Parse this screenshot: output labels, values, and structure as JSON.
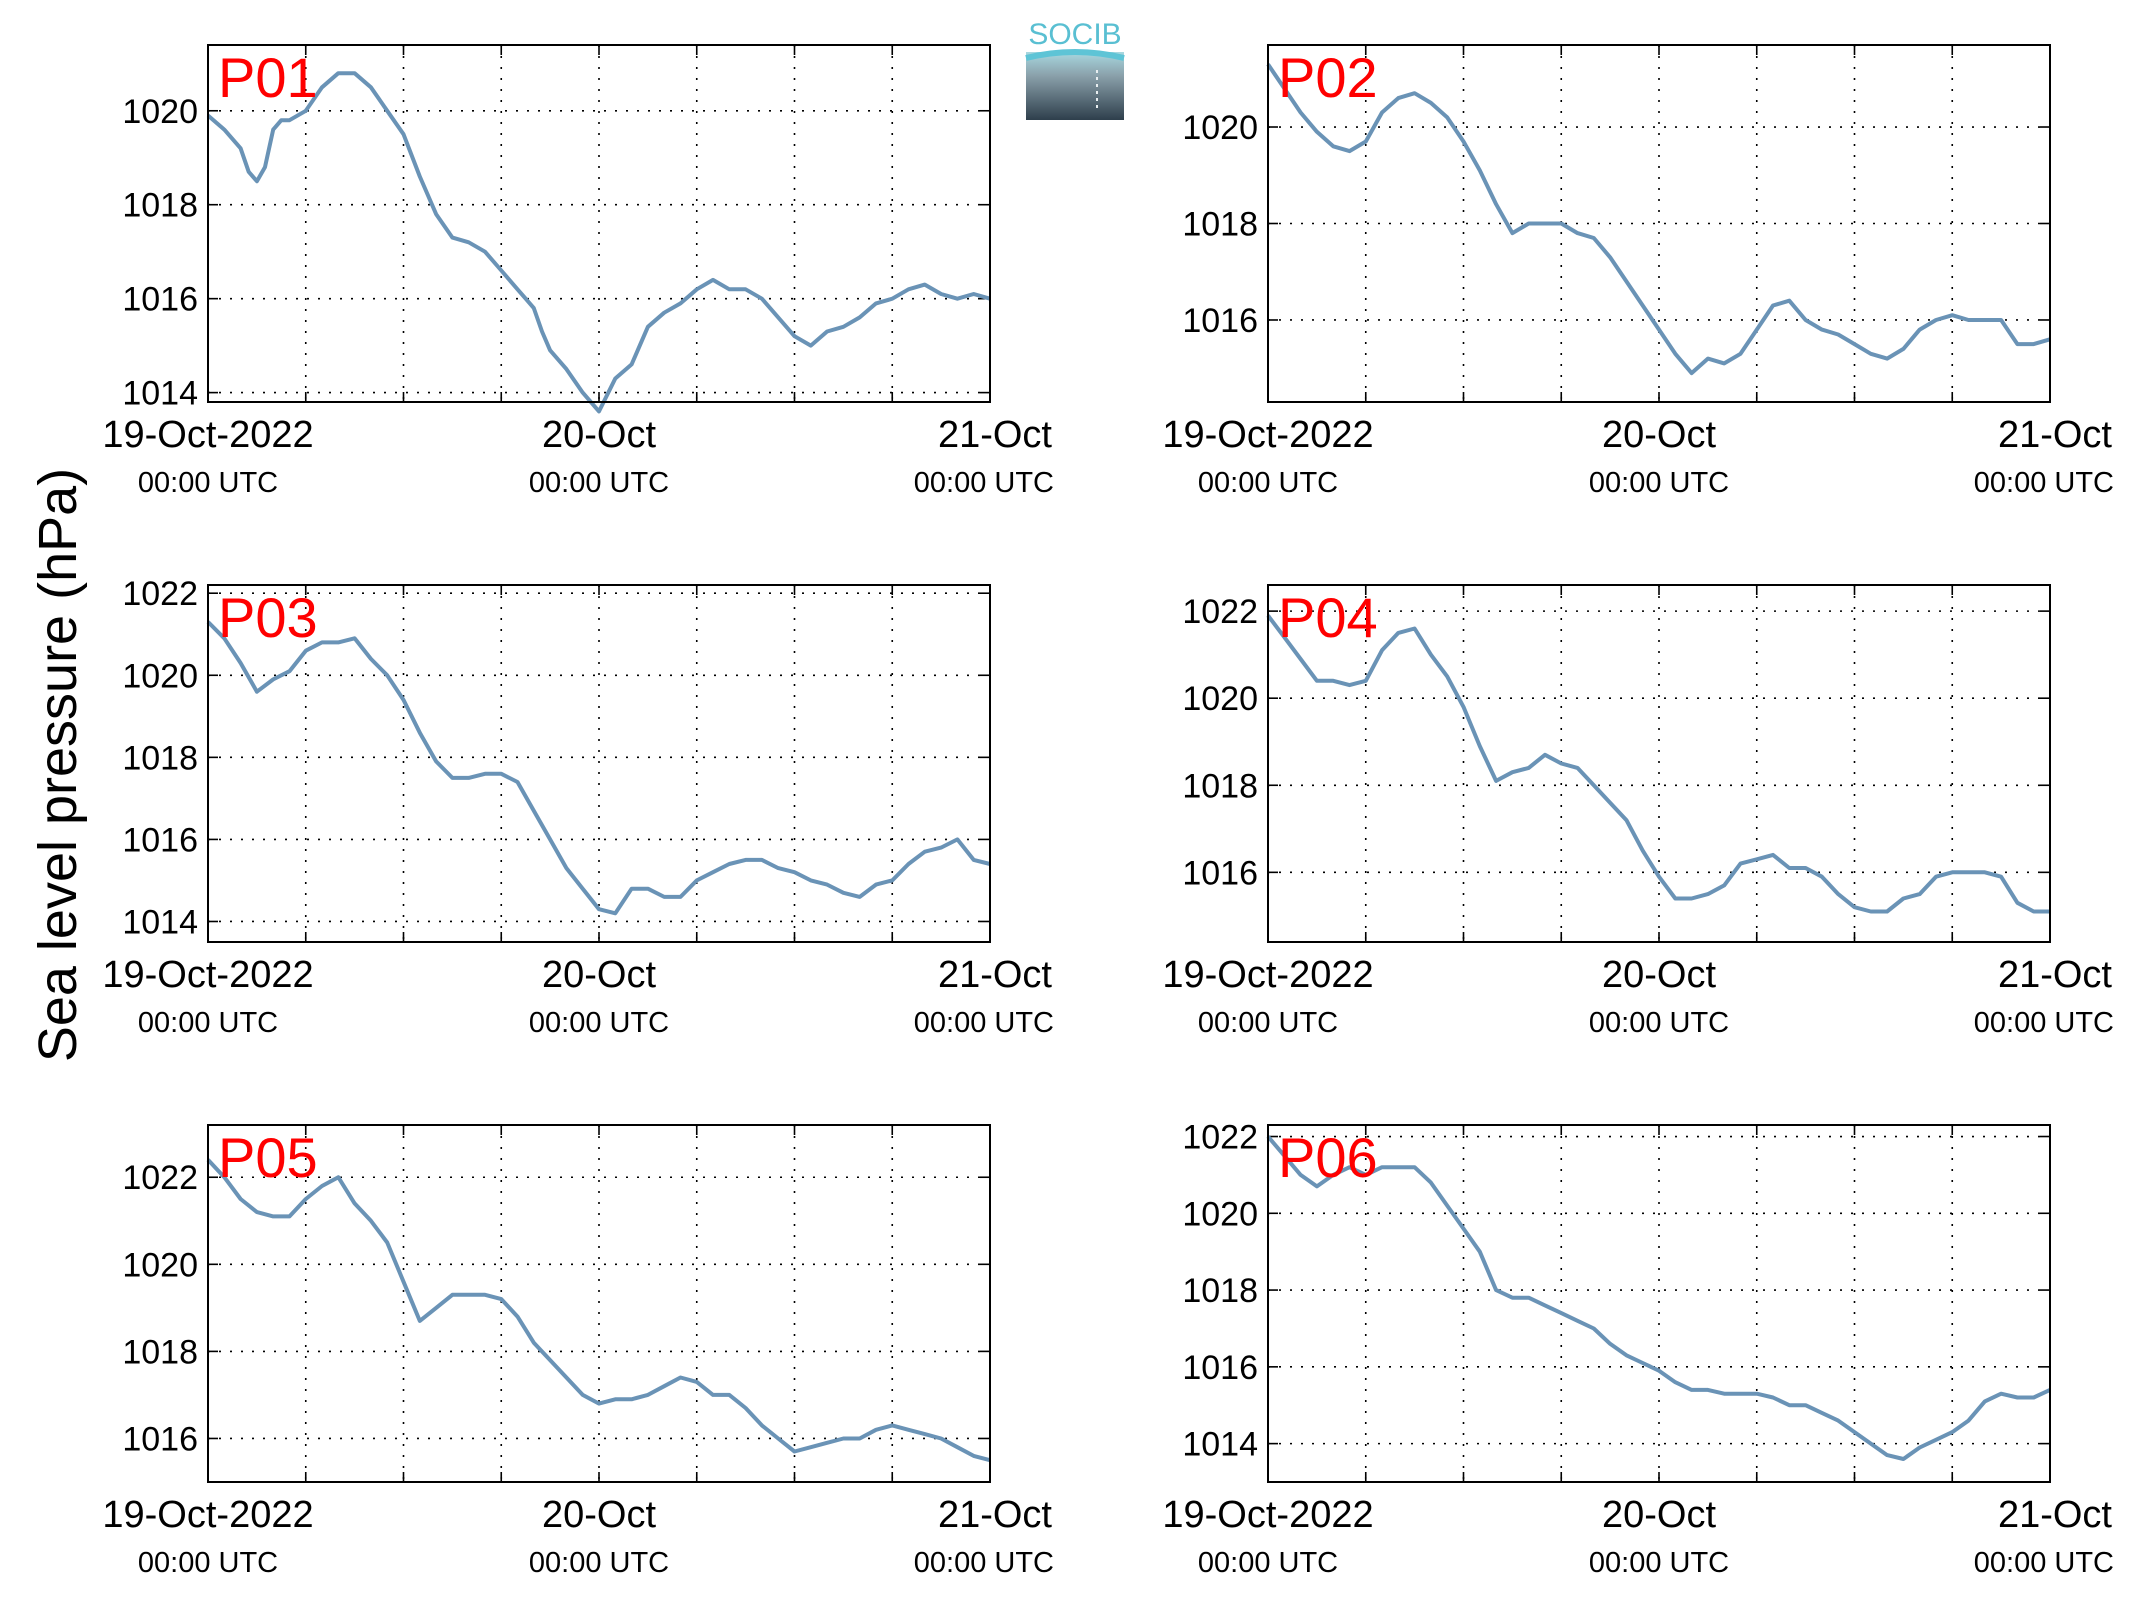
{
  "figure": {
    "ylabel": "Sea level pressure (hPa)",
    "logo_text": "SOCIB",
    "colors": {
      "line": "#6a93b6",
      "panel_label": "#ff0000",
      "grid": "#000000",
      "axes": "#000000"
    }
  },
  "chart_data": [
    {
      "type": "line",
      "panel_label": "P01",
      "x_ticks": [
        {
          "top": "19-Oct-2022",
          "bottom": "00:00 UTC"
        },
        {
          "top": "20-Oct",
          "bottom": "00:00 UTC"
        },
        {
          "top": "21-Oct",
          "bottom": "00:00 UTC"
        }
      ],
      "xlim": [
        0,
        48
      ],
      "ylim": [
        1013.8,
        1021.4
      ],
      "yticks": [
        1014,
        1016,
        1018,
        1020
      ],
      "series": [
        {
          "x": [
            0,
            1,
            2,
            2.5,
            3,
            3.5,
            4,
            4.5,
            5,
            6,
            7,
            8,
            9,
            10,
            11,
            12,
            13,
            14,
            15,
            16,
            17,
            18,
            19,
            19.5,
            20,
            20.5,
            21,
            22,
            23,
            24,
            25,
            26,
            27,
            28,
            29,
            30,
            31,
            32,
            33,
            34,
            35,
            36,
            37,
            38,
            39,
            40,
            41,
            42,
            43,
            44,
            45,
            46,
            47,
            48
          ],
          "y": [
            1019.9,
            1019.6,
            1019.2,
            1018.7,
            1018.5,
            1018.8,
            1019.6,
            1019.8,
            1019.8,
            1020.0,
            1020.5,
            1020.8,
            1020.8,
            1020.5,
            1020.0,
            1019.5,
            1018.6,
            1017.8,
            1017.3,
            1017.2,
            1017.0,
            1016.6,
            1016.2,
            1016.0,
            1015.8,
            1015.3,
            1014.9,
            1014.5,
            1014.0,
            1013.6,
            1014.3,
            1014.6,
            1015.4,
            1015.7,
            1015.9,
            1016.2,
            1016.4,
            1016.2,
            1016.2,
            1016.0,
            1015.6,
            1015.2,
            1015.0,
            1015.3,
            1015.4,
            1015.6,
            1015.9,
            1016.0,
            1016.2,
            1016.3,
            1016.1,
            1016.0,
            1016.1,
            1016.0
          ]
        }
      ]
    },
    {
      "type": "line",
      "panel_label": "P02",
      "x_ticks": [
        {
          "top": "19-Oct-2022",
          "bottom": "00:00 UTC"
        },
        {
          "top": "20-Oct",
          "bottom": "00:00 UTC"
        },
        {
          "top": "21-Oct",
          "bottom": "00:00 UTC"
        }
      ],
      "xlim": [
        0,
        48
      ],
      "ylim": [
        1014.3,
        1021.7
      ],
      "yticks": [
        1016,
        1018,
        1020
      ],
      "series": [
        {
          "x": [
            0,
            1,
            2,
            3,
            4,
            5,
            6,
            7,
            8,
            9,
            10,
            11,
            12,
            13,
            14,
            15,
            16,
            17,
            18,
            19,
            20,
            21,
            22,
            23,
            24,
            25,
            26,
            27,
            28,
            29,
            30,
            31,
            32,
            33,
            34,
            35,
            36,
            37,
            38,
            39,
            40,
            41,
            42,
            43,
            44,
            45,
            46,
            47,
            48
          ],
          "y": [
            1021.3,
            1020.8,
            1020.3,
            1019.9,
            1019.6,
            1019.5,
            1019.7,
            1020.3,
            1020.6,
            1020.7,
            1020.5,
            1020.2,
            1019.7,
            1019.1,
            1018.4,
            1017.8,
            1018.0,
            1018.0,
            1018.0,
            1017.8,
            1017.7,
            1017.3,
            1016.8,
            1016.3,
            1015.8,
            1015.3,
            1014.9,
            1015.2,
            1015.1,
            1015.3,
            1015.8,
            1016.3,
            1016.4,
            1016.0,
            1015.8,
            1015.7,
            1015.5,
            1015.3,
            1015.2,
            1015.4,
            1015.8,
            1016.0,
            1016.1,
            1016.0,
            1016.0,
            1016.0,
            1015.5,
            1015.5,
            1015.6
          ]
        }
      ]
    },
    {
      "type": "line",
      "panel_label": "P03",
      "x_ticks": [
        {
          "top": "19-Oct-2022",
          "bottom": "00:00 UTC"
        },
        {
          "top": "20-Oct",
          "bottom": "00:00 UTC"
        },
        {
          "top": "21-Oct",
          "bottom": "00:00 UTC"
        }
      ],
      "xlim": [
        0,
        48
      ],
      "ylim": [
        1013.5,
        1022.2
      ],
      "yticks": [
        1014,
        1016,
        1018,
        1020,
        1022
      ],
      "series": [
        {
          "x": [
            0,
            1,
            2,
            3,
            4,
            5,
            6,
            7,
            8,
            9,
            10,
            11,
            12,
            13,
            14,
            15,
            16,
            17,
            18,
            19,
            20,
            21,
            22,
            23,
            24,
            25,
            26,
            27,
            28,
            29,
            30,
            31,
            32,
            33,
            34,
            35,
            36,
            37,
            38,
            39,
            40,
            41,
            42,
            43,
            44,
            45,
            46,
            47,
            48
          ],
          "y": [
            1021.3,
            1020.9,
            1020.3,
            1019.6,
            1019.9,
            1020.1,
            1020.6,
            1020.8,
            1020.8,
            1020.9,
            1020.4,
            1020.0,
            1019.4,
            1018.6,
            1017.9,
            1017.5,
            1017.5,
            1017.6,
            1017.6,
            1017.4,
            1016.7,
            1016.0,
            1015.3,
            1014.8,
            1014.3,
            1014.2,
            1014.8,
            1014.8,
            1014.6,
            1014.6,
            1015.0,
            1015.2,
            1015.4,
            1015.5,
            1015.5,
            1015.3,
            1015.2,
            1015.0,
            1014.9,
            1014.7,
            1014.6,
            1014.9,
            1015.0,
            1015.4,
            1015.7,
            1015.8,
            1016.0,
            1015.5,
            1015.4
          ]
        }
      ]
    },
    {
      "type": "line",
      "panel_label": "P04",
      "x_ticks": [
        {
          "top": "19-Oct-2022",
          "bottom": "00:00 UTC"
        },
        {
          "top": "20-Oct",
          "bottom": "00:00 UTC"
        },
        {
          "top": "21-Oct",
          "bottom": "00:00 UTC"
        }
      ],
      "xlim": [
        0,
        48
      ],
      "ylim": [
        1014.4,
        1022.6
      ],
      "yticks": [
        1016,
        1018,
        1020,
        1022
      ],
      "series": [
        {
          "x": [
            0,
            1,
            2,
            3,
            4,
            5,
            6,
            7,
            8,
            9,
            10,
            11,
            12,
            13,
            14,
            15,
            16,
            17,
            18,
            19,
            20,
            21,
            22,
            23,
            24,
            25,
            26,
            27,
            28,
            29,
            30,
            31,
            32,
            33,
            34,
            35,
            36,
            37,
            38,
            39,
            40,
            41,
            42,
            43,
            44,
            45,
            46,
            47,
            48
          ],
          "y": [
            1021.9,
            1021.4,
            1020.9,
            1020.4,
            1020.4,
            1020.3,
            1020.4,
            1021.1,
            1021.5,
            1021.6,
            1021.0,
            1020.5,
            1019.8,
            1018.9,
            1018.1,
            1018.3,
            1018.4,
            1018.7,
            1018.5,
            1018.4,
            1018.0,
            1017.6,
            1017.2,
            1016.5,
            1015.9,
            1015.4,
            1015.4,
            1015.5,
            1015.7,
            1016.2,
            1016.3,
            1016.4,
            1016.1,
            1016.1,
            1015.9,
            1015.5,
            1015.2,
            1015.1,
            1015.1,
            1015.4,
            1015.5,
            1015.9,
            1016.0,
            1016.0,
            1016.0,
            1015.9,
            1015.3,
            1015.1,
            1015.1
          ]
        }
      ]
    },
    {
      "type": "line",
      "panel_label": "P05",
      "x_ticks": [
        {
          "top": "19-Oct-2022",
          "bottom": "00:00 UTC"
        },
        {
          "top": "20-Oct",
          "bottom": "00:00 UTC"
        },
        {
          "top": "21-Oct",
          "bottom": "00:00 UTC"
        }
      ],
      "xlim": [
        0,
        48
      ],
      "ylim": [
        1015.0,
        1023.2
      ],
      "yticks": [
        1016,
        1018,
        1020,
        1022
      ],
      "series": [
        {
          "x": [
            0,
            1,
            2,
            3,
            4,
            5,
            6,
            7,
            8,
            9,
            10,
            11,
            12,
            13,
            14,
            15,
            16,
            17,
            18,
            19,
            20,
            21,
            22,
            23,
            24,
            25,
            26,
            27,
            28,
            29,
            30,
            31,
            32,
            33,
            34,
            35,
            36,
            37,
            38,
            39,
            40,
            41,
            42,
            43,
            44,
            45,
            46,
            47,
            48
          ],
          "y": [
            1022.4,
            1022.0,
            1021.5,
            1021.2,
            1021.1,
            1021.1,
            1021.5,
            1021.8,
            1022.0,
            1021.4,
            1021.0,
            1020.5,
            1019.6,
            1018.7,
            1019.0,
            1019.3,
            1019.3,
            1019.3,
            1019.2,
            1018.8,
            1018.2,
            1017.8,
            1017.4,
            1017.0,
            1016.8,
            1016.9,
            1016.9,
            1017.0,
            1017.2,
            1017.4,
            1017.3,
            1017.0,
            1017.0,
            1016.7,
            1016.3,
            1016.0,
            1015.7,
            1015.8,
            1015.9,
            1016.0,
            1016.0,
            1016.2,
            1016.3,
            1016.2,
            1016.1,
            1016.0,
            1015.8,
            1015.6,
            1015.5
          ]
        }
      ]
    },
    {
      "type": "line",
      "panel_label": "P06",
      "x_ticks": [
        {
          "top": "19-Oct-2022",
          "bottom": "00:00 UTC"
        },
        {
          "top": "20-Oct",
          "bottom": "00:00 UTC"
        },
        {
          "top": "21-Oct",
          "bottom": "00:00 UTC"
        }
      ],
      "xlim": [
        0,
        48
      ],
      "ylim": [
        1013.0,
        1022.3
      ],
      "yticks": [
        1014,
        1016,
        1018,
        1020,
        1022
      ],
      "series": [
        {
          "x": [
            0,
            1,
            2,
            3,
            4,
            5,
            6,
            7,
            8,
            9,
            10,
            11,
            12,
            13,
            14,
            15,
            16,
            17,
            18,
            19,
            20,
            21,
            22,
            23,
            24,
            25,
            26,
            27,
            28,
            29,
            30,
            31,
            32,
            33,
            34,
            35,
            36,
            37,
            38,
            39,
            40,
            41,
            42,
            43,
            44,
            45,
            46,
            47,
            48
          ],
          "y": [
            1022.0,
            1021.5,
            1021.0,
            1020.7,
            1021.0,
            1021.2,
            1021.0,
            1021.2,
            1021.2,
            1021.2,
            1020.8,
            1020.2,
            1019.6,
            1019.0,
            1018.0,
            1017.8,
            1017.8,
            1017.6,
            1017.4,
            1017.2,
            1017.0,
            1016.6,
            1016.3,
            1016.1,
            1015.9,
            1015.6,
            1015.4,
            1015.4,
            1015.3,
            1015.3,
            1015.3,
            1015.2,
            1015.0,
            1015.0,
            1014.8,
            1014.6,
            1014.3,
            1014.0,
            1013.7,
            1013.6,
            1013.9,
            1014.1,
            1014.3,
            1014.6,
            1015.1,
            1015.3,
            1015.2,
            1015.2,
            1015.4
          ]
        }
      ]
    }
  ]
}
